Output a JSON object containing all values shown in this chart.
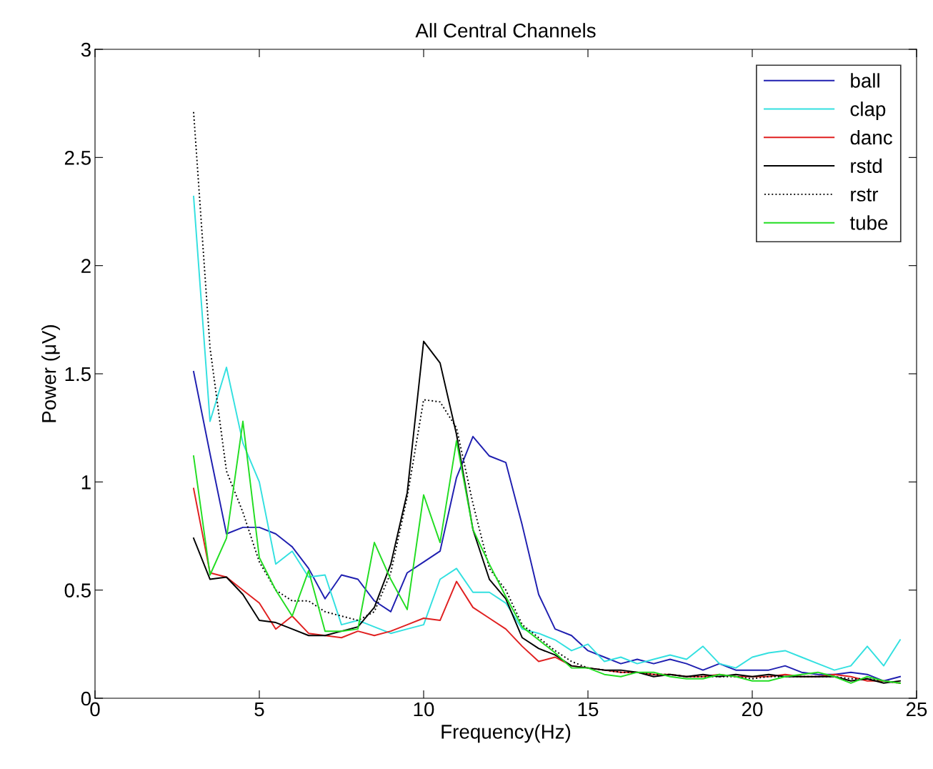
{
  "chart_data": {
    "type": "line",
    "title": "All Central Channels",
    "xlabel": "Frequency(Hz)",
    "ylabel": "Power (μV)",
    "x": [
      3,
      3.5,
      4,
      4.5,
      5,
      5.5,
      6,
      6.5,
      7,
      7.5,
      8,
      8.5,
      9,
      9.5,
      10,
      10.5,
      11,
      11.5,
      12,
      12.5,
      13,
      13.5,
      14,
      14.5,
      15,
      15.5,
      16,
      16.5,
      17,
      17.5,
      18,
      18.5,
      19,
      19.5,
      20,
      20.5,
      21,
      21.5,
      22,
      22.5,
      23,
      23.5,
      24,
      24.5
    ],
    "xlim": [
      0,
      25
    ],
    "xticks": [
      0,
      5,
      10,
      15,
      20,
      25
    ],
    "ylim": [
      0,
      3
    ],
    "yticks": [
      0,
      0.5,
      1,
      1.5,
      2,
      2.5,
      3
    ],
    "grid": false,
    "legend": "top right",
    "marker": "none",
    "series": [
      {
        "name": "ball",
        "color": "#1f1fb0",
        "line_style": "solid",
        "values": [
          1.51,
          1.13,
          0.76,
          0.79,
          0.79,
          0.76,
          0.7,
          0.6,
          0.46,
          0.57,
          0.55,
          0.45,
          0.4,
          0.58,
          0.63,
          0.68,
          1.02,
          1.21,
          1.12,
          1.09,
          0.8,
          0.48,
          0.32,
          0.29,
          0.22,
          0.19,
          0.16,
          0.18,
          0.16,
          0.18,
          0.16,
          0.13,
          0.16,
          0.13,
          0.13,
          0.13,
          0.15,
          0.12,
          0.11,
          0.11,
          0.12,
          0.11,
          0.08,
          0.1
        ]
      },
      {
        "name": "clap",
        "color": "#33e0e0",
        "line_style": "solid",
        "values": [
          2.32,
          1.28,
          1.53,
          1.18,
          1.0,
          0.62,
          0.68,
          0.56,
          0.57,
          0.34,
          0.36,
          0.33,
          0.3,
          0.32,
          0.34,
          0.55,
          0.6,
          0.49,
          0.49,
          0.44,
          0.32,
          0.3,
          0.27,
          0.22,
          0.25,
          0.17,
          0.19,
          0.16,
          0.18,
          0.2,
          0.18,
          0.24,
          0.16,
          0.14,
          0.19,
          0.21,
          0.22,
          0.19,
          0.16,
          0.13,
          0.15,
          0.24,
          0.15,
          0.27
        ]
      },
      {
        "name": "danc",
        "color": "#e02020",
        "line_style": "solid",
        "values": [
          0.97,
          0.58,
          0.56,
          0.5,
          0.44,
          0.32,
          0.38,
          0.3,
          0.29,
          0.28,
          0.31,
          0.29,
          0.31,
          0.34,
          0.37,
          0.36,
          0.54,
          0.42,
          0.37,
          0.32,
          0.24,
          0.17,
          0.19,
          0.15,
          0.14,
          0.13,
          0.12,
          0.12,
          0.11,
          0.11,
          0.1,
          0.1,
          0.11,
          0.1,
          0.1,
          0.1,
          0.11,
          0.1,
          0.1,
          0.11,
          0.1,
          0.08,
          0.08,
          0.07
        ]
      },
      {
        "name": "rstd",
        "color": "#000000",
        "line_style": "solid",
        "values": [
          0.74,
          0.55,
          0.56,
          0.48,
          0.36,
          0.35,
          0.32,
          0.29,
          0.29,
          0.31,
          0.33,
          0.42,
          0.62,
          0.95,
          1.65,
          1.55,
          1.22,
          0.78,
          0.55,
          0.46,
          0.28,
          0.23,
          0.2,
          0.15,
          0.14,
          0.13,
          0.13,
          0.12,
          0.1,
          0.11,
          0.1,
          0.11,
          0.1,
          0.11,
          0.1,
          0.11,
          0.1,
          0.1,
          0.1,
          0.1,
          0.08,
          0.09,
          0.07,
          0.08
        ]
      },
      {
        "name": "rstr",
        "color": "#000000",
        "line_style": "dotted",
        "values": [
          2.71,
          1.62,
          1.05,
          0.86,
          0.63,
          0.5,
          0.45,
          0.45,
          0.4,
          0.38,
          0.36,
          0.4,
          0.58,
          0.93,
          1.38,
          1.37,
          1.25,
          0.9,
          0.6,
          0.5,
          0.34,
          0.28,
          0.22,
          0.17,
          0.14,
          0.13,
          0.12,
          0.12,
          0.11,
          0.11,
          0.1,
          0.1,
          0.1,
          0.1,
          0.09,
          0.1,
          0.1,
          0.1,
          0.1,
          0.1,
          0.09,
          0.09,
          0.08,
          0.07
        ]
      },
      {
        "name": "tube",
        "color": "#22dd22",
        "line_style": "solid",
        "values": [
          1.12,
          0.57,
          0.74,
          1.28,
          0.65,
          0.5,
          0.38,
          0.59,
          0.31,
          0.31,
          0.32,
          0.72,
          0.55,
          0.41,
          0.94,
          0.72,
          1.19,
          0.78,
          0.62,
          0.47,
          0.33,
          0.27,
          0.21,
          0.14,
          0.14,
          0.11,
          0.1,
          0.12,
          0.12,
          0.1,
          0.09,
          0.09,
          0.11,
          0.1,
          0.08,
          0.08,
          0.1,
          0.11,
          0.12,
          0.1,
          0.07,
          0.1,
          0.08,
          0.07
        ]
      }
    ]
  }
}
